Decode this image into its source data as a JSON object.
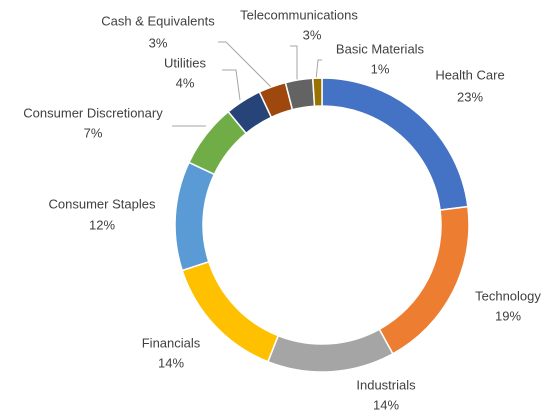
{
  "chart_data": {
    "type": "donut",
    "categories": [
      "Health Care",
      "Technology",
      "Industrials",
      "Financials",
      "Consumer Staples",
      "Consumer Discretionary",
      "Utilities",
      "Cash & Equivalents",
      "Telecommunications",
      "Basic Materials"
    ],
    "values": [
      23,
      19,
      14,
      14,
      12,
      7,
      4,
      3,
      3,
      1
    ],
    "value_labels": [
      "23%",
      "19%",
      "14%",
      "14%",
      "12%",
      "7%",
      "4%",
      "3%",
      "3%",
      "1%"
    ],
    "colors": [
      "#4472c4",
      "#ed7d31",
      "#a5a5a5",
      "#ffc000",
      "#5b9bd5",
      "#70ad47",
      "#264478",
      "#9e480e",
      "#636363",
      "#997300"
    ]
  }
}
